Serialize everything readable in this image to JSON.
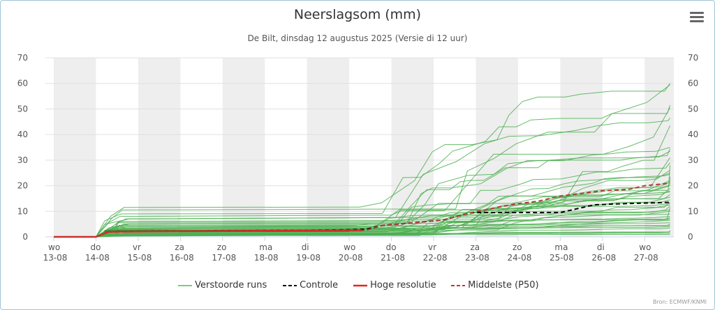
{
  "chart_data": {
    "type": "line",
    "title": "Neerslagsom (mm)",
    "subtitle": "De Bilt, dinsdag 12 augustus 2025 (Versie di 12 uur)",
    "ylim": [
      0,
      70
    ],
    "yticks": [
      0,
      10,
      20,
      30,
      40,
      50,
      60,
      70
    ],
    "xlim": [
      0,
      14.6
    ],
    "x_ticks": [
      {
        "x": 0,
        "day": "wo",
        "date": "13-08"
      },
      {
        "x": 1,
        "day": "do",
        "date": "14-08"
      },
      {
        "x": 2,
        "day": "vr",
        "date": "15-08"
      },
      {
        "x": 3,
        "day": "za",
        "date": "16-08"
      },
      {
        "x": 4,
        "day": "zo",
        "date": "17-08"
      },
      {
        "x": 5,
        "day": "ma",
        "date": "18-08"
      },
      {
        "x": 6,
        "day": "di",
        "date": "19-08"
      },
      {
        "x": 7,
        "day": "wo",
        "date": "20-08"
      },
      {
        "x": 8,
        "day": "do",
        "date": "21-08"
      },
      {
        "x": 9,
        "day": "vr",
        "date": "22-08"
      },
      {
        "x": 10,
        "day": "za",
        "date": "23-08"
      },
      {
        "x": 11,
        "day": "zo",
        "date": "24-08"
      },
      {
        "x": 12,
        "day": "ma",
        "date": "25-08"
      },
      {
        "x": 13,
        "day": "di",
        "date": "26-08"
      },
      {
        "x": 14,
        "day": "wo",
        "date": "27-08"
      }
    ],
    "shaded_days": [
      0,
      2,
      4,
      6,
      8,
      10,
      12,
      14
    ],
    "grid": true,
    "legend_position": "bottom",
    "series": [
      {
        "name": "Controle",
        "color": "#000000",
        "dash": true,
        "x": [
          0,
          1.0,
          1.3,
          2,
          4,
          6,
          7,
          7.4,
          7.8,
          8.5,
          9.2,
          9.9,
          10.3,
          12.0,
          12.8,
          13.2,
          14.6
        ],
        "values": [
          0,
          0,
          2,
          2.2,
          2.4,
          2.6,
          2.8,
          3,
          4.5,
          5.5,
          6.5,
          9.5,
          9.5,
          9.5,
          12.5,
          12.8,
          13.5
        ]
      },
      {
        "name": "Hoge resolutie",
        "color": "#e8231d",
        "dash": false,
        "x": [
          0,
          1.0,
          1.3,
          3,
          5,
          7,
          7.3
        ],
        "values": [
          0,
          0,
          2,
          2.2,
          2.4,
          2.6,
          2.6
        ]
      },
      {
        "name": "Middelste (P50)",
        "color": "#b33a3a",
        "dash": true,
        "x": [
          0,
          1.0,
          1.3,
          2,
          4,
          6,
          7,
          7.4,
          7.8,
          8.5,
          9.2,
          9.9,
          10.5,
          11.0,
          11.5,
          12.0,
          12.5,
          13.0,
          13.6,
          14.0,
          14.6
        ],
        "values": [
          0,
          0,
          2,
          2.1,
          2.2,
          2.3,
          2.4,
          2.6,
          4.5,
          5.5,
          6.5,
          9.5,
          11.5,
          13,
          14,
          16,
          17,
          18,
          18.5,
          20,
          21
        ]
      },
      {
        "name": "Verstoorde runs",
        "color": "#4caf50",
        "dash": false,
        "ensemble": true,
        "finals": [
          60,
          59.5,
          51.5,
          50.5,
          46.5,
          43.5,
          35,
          34.5,
          33.5,
          31,
          29,
          28,
          26,
          25,
          24.5,
          23.5,
          22,
          21.5,
          20,
          19,
          18,
          17.5,
          16.5,
          15.5,
          14.5,
          13.5,
          13,
          12.5,
          12,
          11.5,
          10.5,
          10,
          9,
          8,
          7.5,
          7,
          6.5,
          5.5,
          5,
          4.5,
          4,
          3.5,
          2.5,
          2,
          1.5,
          1
        ],
        "starts": [
          11.5,
          10.5,
          9,
          8,
          7,
          6,
          5.5,
          5,
          4.5,
          4,
          3.5,
          3.2,
          3,
          2.8,
          2.5,
          2.2,
          2,
          1.8,
          1.5,
          1.2,
          1,
          0.8,
          6,
          5,
          4,
          3.5,
          3,
          2.5,
          2,
          1.5,
          1,
          0.5,
          7,
          5,
          4,
          3,
          2.5,
          2,
          1.5,
          1.2,
          1,
          0.8,
          0.6,
          0.5,
          0.4,
          0.3
        ]
      }
    ]
  },
  "legend": [
    {
      "label": "Verstoorde runs",
      "color": "#7fc97f",
      "style": "solid"
    },
    {
      "label": "Controle",
      "color": "#000000",
      "style": "dashed"
    },
    {
      "label": "Hoge resolutie",
      "color": "#e8231d",
      "style": "solid"
    },
    {
      "label": "Middelste (P50)",
      "color": "#b33a3a",
      "style": "dashed"
    }
  ],
  "credit": "Bron: ECMWF/KNMI",
  "menu_icon": "hamburger-icon"
}
